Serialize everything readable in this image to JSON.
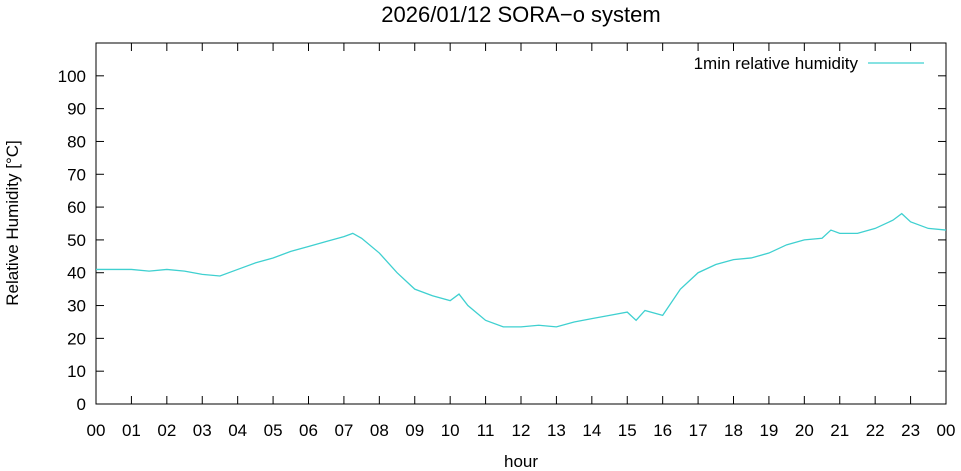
{
  "chart_data": {
    "type": "line",
    "title": "2026/01/12 SORA−o system",
    "xlabel": "hour",
    "ylabel": "Relative Humidity [°C]",
    "x": [
      0,
      0.5,
      1,
      1.5,
      2,
      2.5,
      3,
      3.5,
      4,
      4.5,
      5,
      5.5,
      6,
      6.5,
      7,
      7.25,
      7.5,
      8,
      8.5,
      9,
      9.5,
      10,
      10.25,
      10.5,
      11,
      11.5,
      12,
      12.5,
      13,
      13.5,
      14,
      14.5,
      15,
      15.25,
      15.5,
      16,
      16.5,
      17,
      17.5,
      18,
      18.5,
      19,
      19.5,
      20,
      20.5,
      20.75,
      21,
      21.5,
      22,
      22.5,
      22.75,
      23,
      23.5,
      24
    ],
    "series": [
      {
        "name": "1min relative humidity",
        "color": "#3fd0d0",
        "values": [
          41,
          41,
          41,
          40.5,
          41,
          40.5,
          39.5,
          39,
          41,
          43,
          44.5,
          46.5,
          48,
          49.5,
          51,
          52,
          50.5,
          46,
          40,
          35,
          33,
          31.5,
          33.5,
          30,
          25.5,
          23.5,
          23.5,
          24,
          23.5,
          25,
          26,
          27,
          28,
          25.5,
          28.5,
          27,
          35,
          40,
          42.5,
          44,
          44.5,
          46,
          48.5,
          50,
          50.5,
          53,
          52,
          52,
          53.5,
          56,
          58,
          55.5,
          53.5,
          53
        ]
      }
    ],
    "xlim": [
      0,
      24
    ],
    "xticks": [
      {
        "value": 0,
        "label": "00"
      },
      {
        "value": 1,
        "label": "01"
      },
      {
        "value": 2,
        "label": "02"
      },
      {
        "value": 3,
        "label": "03"
      },
      {
        "value": 4,
        "label": "04"
      },
      {
        "value": 5,
        "label": "05"
      },
      {
        "value": 6,
        "label": "06"
      },
      {
        "value": 7,
        "label": "07"
      },
      {
        "value": 8,
        "label": "08"
      },
      {
        "value": 9,
        "label": "09"
      },
      {
        "value": 10,
        "label": "10"
      },
      {
        "value": 11,
        "label": "11"
      },
      {
        "value": 12,
        "label": "12"
      },
      {
        "value": 13,
        "label": "13"
      },
      {
        "value": 14,
        "label": "14"
      },
      {
        "value": 15,
        "label": "15"
      },
      {
        "value": 16,
        "label": "16"
      },
      {
        "value": 17,
        "label": "17"
      },
      {
        "value": 18,
        "label": "18"
      },
      {
        "value": 19,
        "label": "19"
      },
      {
        "value": 20,
        "label": "20"
      },
      {
        "value": 21,
        "label": "21"
      },
      {
        "value": 22,
        "label": "22"
      },
      {
        "value": 23,
        "label": "23"
      },
      {
        "value": 24,
        "label": "00"
      }
    ],
    "ylim": [
      0,
      110
    ],
    "yticks": [
      0,
      10,
      20,
      30,
      40,
      50,
      60,
      70,
      80,
      90,
      100
    ],
    "legend": "top right"
  }
}
